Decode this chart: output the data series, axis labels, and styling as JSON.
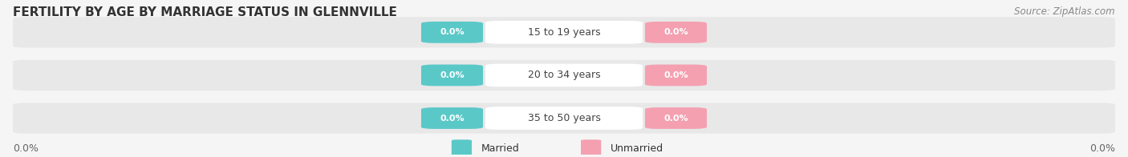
{
  "title": "FERTILITY BY AGE BY MARRIAGE STATUS IN GLENNVILLE",
  "source": "Source: ZipAtlas.com",
  "categories": [
    "15 to 19 years",
    "20 to 34 years",
    "35 to 50 years"
  ],
  "married_values": [
    0.0,
    0.0,
    0.0
  ],
  "unmarried_values": [
    0.0,
    0.0,
    0.0
  ],
  "married_color": "#5bc8c8",
  "unmarried_color": "#f4a0b0",
  "bar_bg_color": "#e8e8e8",
  "bar_row_bg": "#e8e8e8",
  "title_fontsize": 11,
  "source_fontsize": 8.5,
  "label_fontsize": 9,
  "category_fontsize": 9,
  "value_fontsize": 8,
  "legend_fontsize": 9,
  "background_color": "#f5f5f5"
}
